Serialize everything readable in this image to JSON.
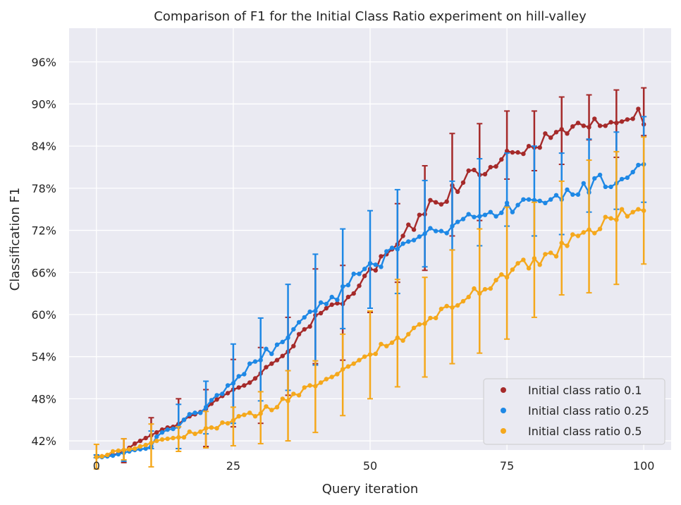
{
  "chart_data": {
    "type": "line",
    "title": "Comparison of F1 for the Initial Class Ratio experiment on hill-valley",
    "xlabel": "Query iteration",
    "ylabel": "Classification F1",
    "xlim": [
      -5,
      105
    ],
    "ylim": [
      40.7,
      100.8
    ],
    "xticks": [
      0,
      25,
      50,
      75,
      100
    ],
    "yticks": [
      42,
      48,
      54,
      60,
      66,
      72,
      78,
      84,
      90,
      96
    ],
    "ytick_labels": [
      "42%",
      "48%",
      "54%",
      "60%",
      "66%",
      "72%",
      "78%",
      "84%",
      "90%",
      "96%"
    ],
    "grid": true,
    "legend_position": "bottom-right",
    "series": [
      {
        "name": "Initial class ratio 0.1",
        "color": "#a52a2a",
        "x": [
          0,
          1,
          2,
          3,
          4,
          5,
          6,
          7,
          8,
          9,
          10,
          11,
          12,
          13,
          14,
          15,
          16,
          17,
          18,
          19,
          20,
          21,
          22,
          23,
          24,
          25,
          26,
          27,
          28,
          29,
          30,
          31,
          32,
          33,
          34,
          35,
          36,
          37,
          38,
          39,
          40,
          41,
          42,
          43,
          44,
          45,
          46,
          47,
          48,
          49,
          50,
          51,
          52,
          53,
          54,
          55,
          56,
          57,
          58,
          59,
          60,
          61,
          62,
          63,
          64,
          65,
          66,
          67,
          68,
          69,
          70,
          71,
          72,
          73,
          74,
          75,
          76,
          77,
          78,
          79,
          80,
          81,
          82,
          83,
          84,
          85,
          86,
          87,
          88,
          89,
          90,
          91,
          92,
          93,
          94,
          95,
          96,
          97,
          98,
          99,
          100
        ],
        "y": [
          39.8,
          39.8,
          39.9,
          40.0,
          40.2,
          40.5,
          41.0,
          41.6,
          42.0,
          42.4,
          42.8,
          43.2,
          43.6,
          43.9,
          44.0,
          44.4,
          45.0,
          45.5,
          45.8,
          46.1,
          46.6,
          47.3,
          47.9,
          48.4,
          48.8,
          49.3,
          49.6,
          49.9,
          50.3,
          50.9,
          51.6,
          52.5,
          53.0,
          53.5,
          54.1,
          54.7,
          55.5,
          57.2,
          57.9,
          58.3,
          59.9,
          60.2,
          60.9,
          61.4,
          61.6,
          61.5,
          62.5,
          63.0,
          64.1,
          65.5,
          66.5,
          66.3,
          68.3,
          68.6,
          69.3,
          70.0,
          71.2,
          72.8,
          72.1,
          74.2,
          74.3,
          76.3,
          76.0,
          75.7,
          76.1,
          78.4,
          77.5,
          78.8,
          80.5,
          80.6,
          79.9,
          80.0,
          81.0,
          81.1,
          82.1,
          83.3,
          83.1,
          83.1,
          82.9,
          84.0,
          83.8,
          83.8,
          85.8,
          85.2,
          86.0,
          86.4,
          85.8,
          86.8,
          87.3,
          86.9,
          86.7,
          87.9,
          86.9,
          86.9,
          87.4,
          87.3,
          87.5,
          87.8,
          87.9,
          89.3,
          87.1
        ],
        "error_x": [
          0,
          5,
          10,
          15,
          20,
          25,
          30,
          35,
          40,
          45,
          50,
          55,
          60,
          65,
          70,
          75,
          80,
          85,
          90,
          95,
          100
        ],
        "error_low": [
          39.6,
          38.9,
          40.9,
          40.9,
          41.2,
          44.0,
          44.5,
          48.5,
          53.0,
          53.5,
          60.3,
          64.6,
          66.3,
          71.2,
          73.4,
          79.3,
          80.5,
          81.4,
          84.9,
          82.4,
          85.5
        ],
        "error_high": [
          40.0,
          42.3,
          45.3,
          48.0,
          49.3,
          53.6,
          55.3,
          59.6,
          66.5,
          67.0,
          60.5,
          75.8,
          81.2,
          85.8,
          87.2,
          89.0,
          89.0,
          91.0,
          91.3,
          92.0,
          92.3
        ]
      },
      {
        "name": "Initial class ratio 0.25",
        "color": "#1e88e5",
        "x": [
          0,
          1,
          2,
          3,
          4,
          5,
          6,
          7,
          8,
          9,
          10,
          11,
          12,
          13,
          14,
          15,
          16,
          17,
          18,
          19,
          20,
          21,
          22,
          23,
          24,
          25,
          26,
          27,
          28,
          29,
          30,
          31,
          32,
          33,
          34,
          35,
          36,
          37,
          38,
          39,
          40,
          41,
          42,
          43,
          44,
          45,
          46,
          47,
          48,
          49,
          50,
          51,
          52,
          53,
          54,
          55,
          56,
          57,
          58,
          59,
          60,
          61,
          62,
          63,
          64,
          65,
          66,
          67,
          68,
          69,
          70,
          71,
          72,
          73,
          74,
          75,
          76,
          77,
          78,
          79,
          80,
          81,
          82,
          83,
          84,
          85,
          86,
          87,
          88,
          89,
          90,
          91,
          92,
          93,
          94,
          95,
          96,
          97,
          98,
          99,
          100
        ],
        "y": [
          39.8,
          39.7,
          39.8,
          39.9,
          40.1,
          40.3,
          40.5,
          40.7,
          40.8,
          40.9,
          41.2,
          42.6,
          43.2,
          43.6,
          43.7,
          44.0,
          45.0,
          45.8,
          46.0,
          46.0,
          46.8,
          47.8,
          48.5,
          48.7,
          49.9,
          50.2,
          51.2,
          51.5,
          53.0,
          53.3,
          53.5,
          55.1,
          54.4,
          55.7,
          56.1,
          56.7,
          57.9,
          58.9,
          59.6,
          60.4,
          60.5,
          61.7,
          61.5,
          62.5,
          62.1,
          64.0,
          64.2,
          65.8,
          65.8,
          66.5,
          67.3,
          67.1,
          66.8,
          69.0,
          69.5,
          69.3,
          70.1,
          70.4,
          70.6,
          71.1,
          71.5,
          72.3,
          71.9,
          71.9,
          71.6,
          72.6,
          73.2,
          73.6,
          74.3,
          73.9,
          74.0,
          74.2,
          74.6,
          74.0,
          74.5,
          75.9,
          74.6,
          75.6,
          76.4,
          76.4,
          76.3,
          76.2,
          75.9,
          76.4,
          77.0,
          76.4,
          77.8,
          77.1,
          77.1,
          78.7,
          77.4,
          79.4,
          79.9,
          78.2,
          78.2,
          78.7,
          79.3,
          79.5,
          80.3,
          81.3,
          81.4
        ],
        "error_x": [
          0,
          5,
          10,
          15,
          20,
          25,
          30,
          35,
          40,
          45,
          50,
          55,
          60,
          65,
          70,
          75,
          80,
          85,
          90,
          95,
          100
        ],
        "error_low": [
          39.6,
          39.1,
          40.9,
          40.9,
          43.0,
          44.5,
          47.7,
          49.2,
          52.8,
          58.0,
          60.9,
          63.0,
          66.8,
          69.2,
          69.8,
          72.6,
          71.2,
          71.4,
          74.6,
          75.0,
          76.0
        ],
        "error_high": [
          40.0,
          40.7,
          43.4,
          47.2,
          50.5,
          55.8,
          59.5,
          64.3,
          68.6,
          72.2,
          74.8,
          77.8,
          79.1,
          79.0,
          82.2,
          83.0,
          84.0,
          83.0,
          85.0,
          86.0,
          88.2
        ]
      },
      {
        "name": "Initial class ratio 0.5",
        "color": "#f5a81c",
        "x": [
          0,
          1,
          2,
          3,
          4,
          5,
          6,
          7,
          8,
          9,
          10,
          11,
          12,
          13,
          14,
          15,
          16,
          17,
          18,
          19,
          20,
          21,
          22,
          23,
          24,
          25,
          26,
          27,
          28,
          29,
          30,
          31,
          32,
          33,
          34,
          35,
          36,
          37,
          38,
          39,
          40,
          41,
          42,
          43,
          44,
          45,
          46,
          47,
          48,
          49,
          50,
          51,
          52,
          53,
          54,
          55,
          56,
          57,
          58,
          59,
          60,
          61,
          62,
          63,
          64,
          65,
          66,
          67,
          68,
          69,
          70,
          71,
          72,
          73,
          74,
          75,
          76,
          77,
          78,
          79,
          80,
          81,
          82,
          83,
          84,
          85,
          86,
          87,
          88,
          89,
          90,
          91,
          92,
          93,
          94,
          95,
          96,
          97,
          98,
          99,
          100
        ],
        "y": [
          39.7,
          39.8,
          40.0,
          40.5,
          40.6,
          40.7,
          40.8,
          40.9,
          41.2,
          41.4,
          41.7,
          42.0,
          42.2,
          42.3,
          42.4,
          42.5,
          42.5,
          43.3,
          43.0,
          43.3,
          43.8,
          43.9,
          43.8,
          44.6,
          44.5,
          44.9,
          45.5,
          45.7,
          46.0,
          45.5,
          45.9,
          46.9,
          46.4,
          46.8,
          48.0,
          47.7,
          48.7,
          48.5,
          49.6,
          49.9,
          49.8,
          50.3,
          50.8,
          51.1,
          51.5,
          52.2,
          52.6,
          53.0,
          53.5,
          54.0,
          54.3,
          54.4,
          55.8,
          55.5,
          56.0,
          56.7,
          56.3,
          57.2,
          58.1,
          58.6,
          58.7,
          59.5,
          59.5,
          60.8,
          61.2,
          61.0,
          61.3,
          61.9,
          62.5,
          63.7,
          63.0,
          63.6,
          63.7,
          64.9,
          65.7,
          65.3,
          66.4,
          67.3,
          67.8,
          66.6,
          68.0,
          67.1,
          68.6,
          68.8,
          68.3,
          70.2,
          69.8,
          71.4,
          71.2,
          71.7,
          72.1,
          71.6,
          72.2,
          73.9,
          73.7,
          73.5,
          75.0,
          74.0,
          74.6,
          75.0,
          74.8
        ],
        "error_x": [
          0,
          5,
          10,
          15,
          20,
          25,
          30,
          35,
          40,
          45,
          50,
          55,
          60,
          65,
          70,
          75,
          80,
          85,
          90,
          95,
          100
        ],
        "error_low": [
          38.0,
          39.3,
          38.3,
          40.5,
          41.0,
          41.3,
          41.6,
          42.0,
          43.2,
          45.6,
          48.0,
          49.7,
          51.1,
          53.0,
          54.5,
          56.5,
          59.6,
          62.8,
          63.1,
          64.3,
          67.2
        ],
        "error_high": [
          41.5,
          42.3,
          44.4,
          44.0,
          46.2,
          46.8,
          49.0,
          52.0,
          53.4,
          57.2,
          60.5,
          65.0,
          65.3,
          69.2,
          72.2,
          75.3,
          76.0,
          79.0,
          82.0,
          83.2,
          85.3
        ]
      }
    ]
  }
}
